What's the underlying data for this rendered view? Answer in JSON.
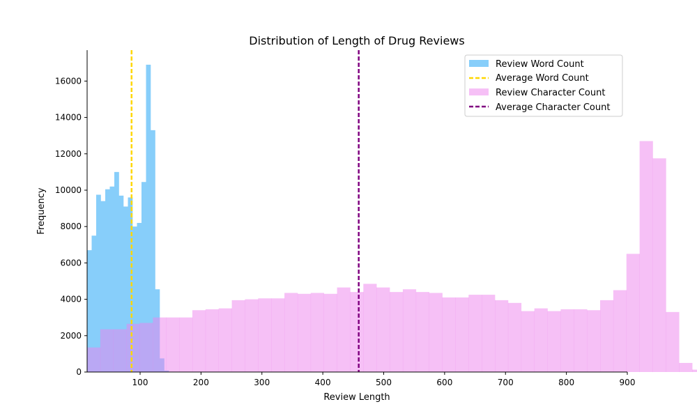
{
  "chart_data": {
    "type": "bar",
    "title": "Distribution of Length of Drug Reviews",
    "xlabel": "Review Length",
    "ylabel": "Frequency",
    "xlim": [
      13,
      900
    ],
    "ylim": [
      0,
      17700
    ],
    "xticks": [
      100,
      200,
      300,
      400,
      500,
      600,
      700,
      800,
      900
    ],
    "yticks": [
      0,
      2000,
      4000,
      6000,
      8000,
      10000,
      12000,
      14000,
      16000
    ],
    "legend_position": "top-right",
    "grid": false,
    "series": [
      {
        "name": "Review Word Count",
        "kind": "histogram",
        "color": "#87cefa",
        "opacity": 1.0,
        "bin_start": 13,
        "bin_width": 7.44,
        "values": [
          6700,
          7500,
          9750,
          9400,
          10050,
          10200,
          11000,
          9700,
          9100,
          9600,
          8000,
          8200,
          10450,
          16900,
          13300,
          4550,
          750,
          80,
          20,
          10
        ]
      },
      {
        "name": "Review Character Count",
        "kind": "histogram",
        "color": "#ee82ee",
        "opacity": 0.5,
        "bin_start": 13,
        "bin_width": 21.6,
        "values": [
          1350,
          2350,
          2350,
          2650,
          2700,
          3000,
          3000,
          3000,
          3400,
          3450,
          3500,
          3950,
          4000,
          4050,
          4050,
          4350,
          4300,
          4350,
          4300,
          4650,
          4400,
          4850,
          4650,
          4400,
          4550,
          4400,
          4350,
          4100,
          4100,
          4250,
          4250,
          3950,
          3800,
          3350,
          3500,
          3350,
          3450,
          3450,
          3400,
          3950,
          4500,
          6500,
          12700,
          11750,
          3300,
          500,
          130,
          20,
          10
        ]
      },
      {
        "name": "Average Word Count",
        "kind": "vline",
        "color": "#ffd700",
        "x": 86
      },
      {
        "name": "Average Character Count",
        "kind": "vline",
        "color": "#800080",
        "x": 459
      }
    ]
  }
}
